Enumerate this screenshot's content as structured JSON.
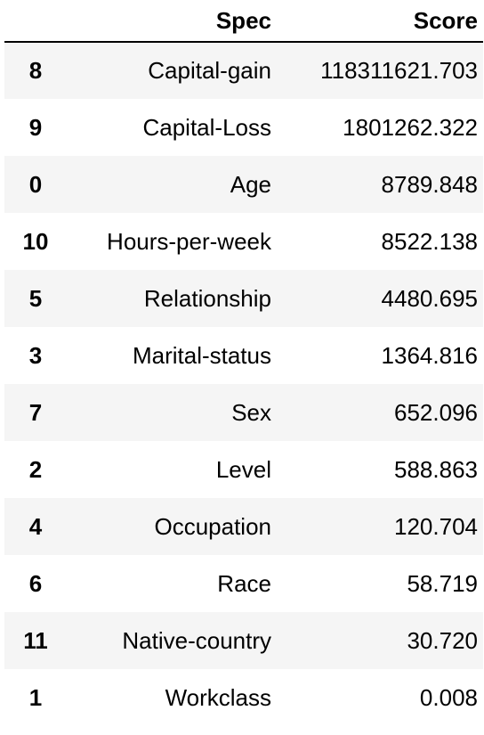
{
  "table": {
    "columns": {
      "index": "",
      "spec": "Spec",
      "score": "Score"
    },
    "rows": [
      {
        "index": "8",
        "spec": "Capital-gain",
        "score": "118311621.703"
      },
      {
        "index": "9",
        "spec": "Capital-Loss",
        "score": "1801262.322"
      },
      {
        "index": "0",
        "spec": "Age",
        "score": "8789.848"
      },
      {
        "index": "10",
        "spec": "Hours-per-week",
        "score": "8522.138"
      },
      {
        "index": "5",
        "spec": "Relationship",
        "score": "4480.695"
      },
      {
        "index": "3",
        "spec": "Marital-status",
        "score": "1364.816"
      },
      {
        "index": "7",
        "spec": "Sex",
        "score": "652.096"
      },
      {
        "index": "2",
        "spec": "Level",
        "score": "588.863"
      },
      {
        "index": "4",
        "spec": "Occupation",
        "score": "120.704"
      },
      {
        "index": "6",
        "spec": "Race",
        "score": "58.719"
      },
      {
        "index": "11",
        "spec": "Native-country",
        "score": "30.720"
      },
      {
        "index": "1",
        "spec": "Workclass",
        "score": "0.008"
      }
    ]
  },
  "colors": {
    "stripe": "#f5f5f5",
    "text": "#000000",
    "header_rule": "#000000"
  }
}
